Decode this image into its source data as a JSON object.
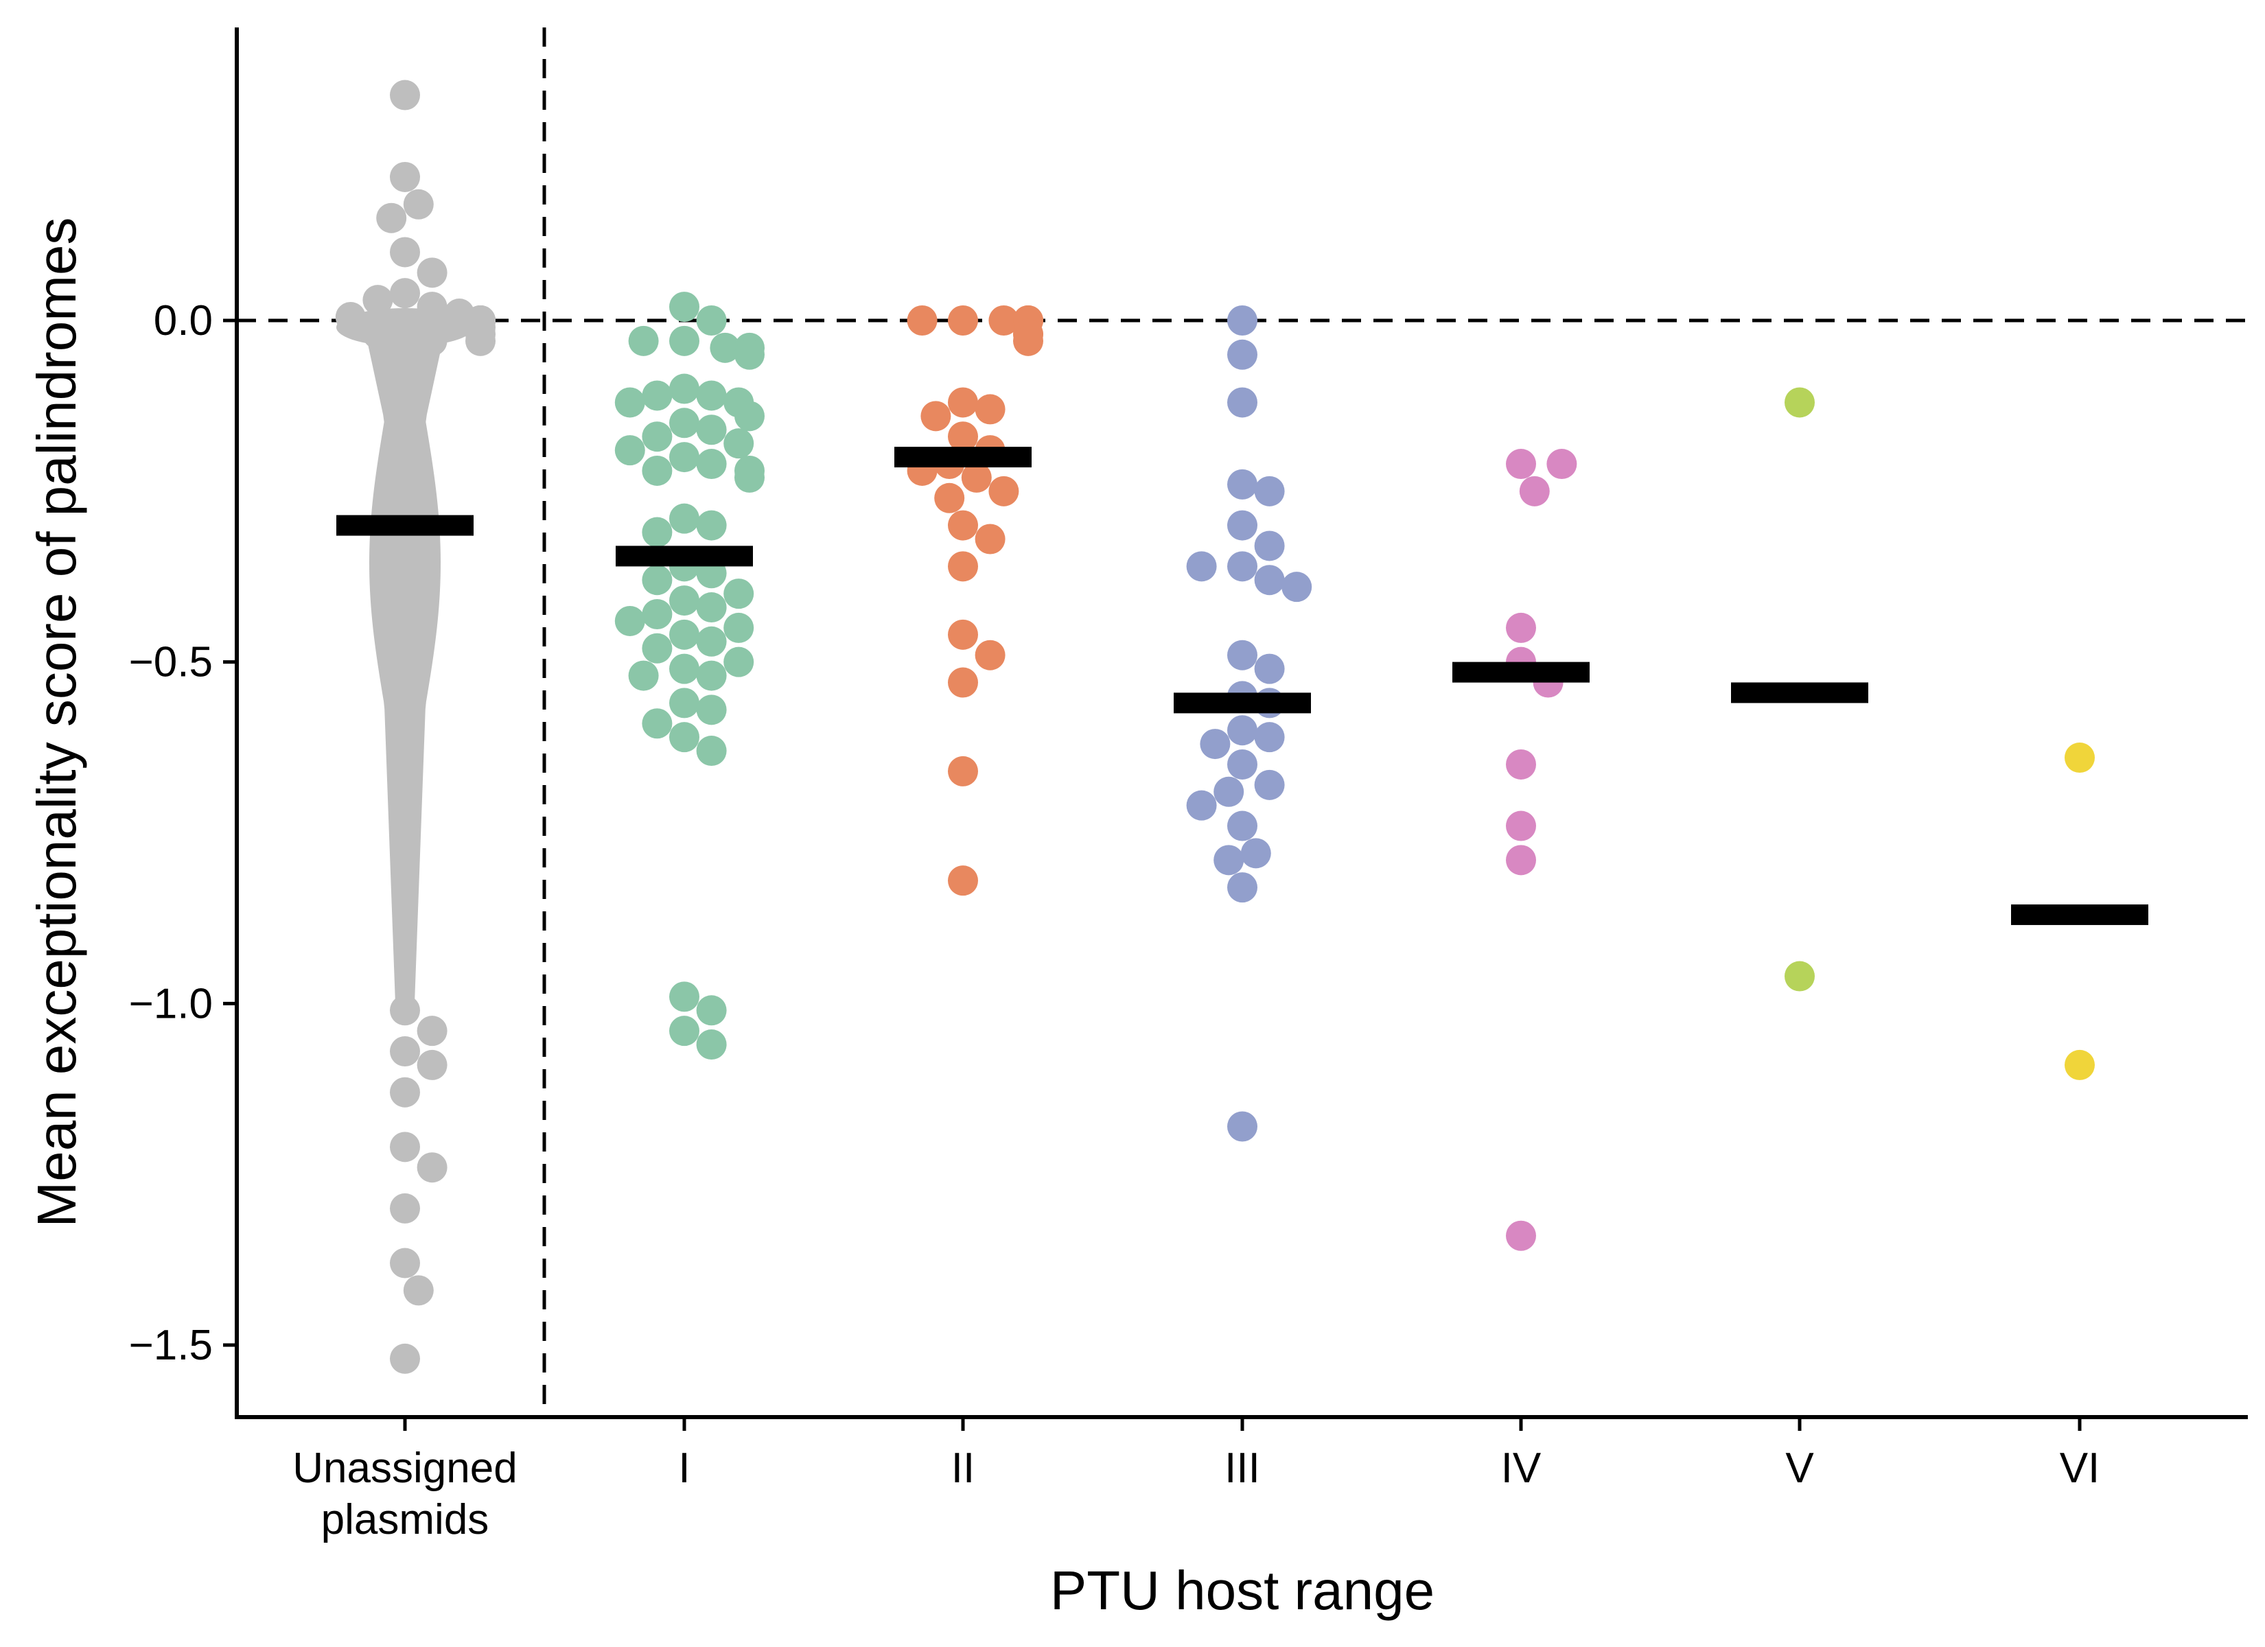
{
  "chart_data": {
    "type": "scatter",
    "subtype": "beeswarm",
    "xlabel": "PTU host range",
    "ylabel": "Mean exceptionality score of palindromes",
    "ylim": [
      -1.6,
      0.38
    ],
    "yticks": [
      0.0,
      -0.5,
      -1.0,
      -1.5
    ],
    "ytick_labels": [
      "0.0",
      "−0.5",
      "−1.0",
      "−1.5"
    ],
    "grid": false,
    "legend": "none",
    "reference_lines": [
      {
        "orientation": "horizontal",
        "value": 0.0,
        "style": "dashed"
      },
      {
        "orientation": "vertical",
        "between": [
          "Unassigned plasmids",
          "I"
        ],
        "style": "dashed"
      }
    ],
    "categories": [
      {
        "key": "unassigned",
        "label_lines": [
          "Unassigned",
          "plasmids"
        ],
        "color": "#bebebe",
        "mean": -0.3,
        "values": [
          0.33,
          0.21,
          0.17,
          0.15,
          0.1,
          0.07,
          0.04,
          0.03,
          0.02,
          0.01,
          0.005,
          0.0,
          0.0,
          0.0,
          0.0,
          0.0,
          0.0,
          0.0,
          0.0,
          0.0,
          0.0,
          0.0,
          0.0,
          -0.01,
          -0.01,
          -0.02,
          -0.02,
          -0.03,
          -0.03,
          -1.01,
          -1.04,
          -1.07,
          -1.09,
          -1.13,
          -1.21,
          -1.24,
          -1.3,
          -1.38,
          -1.42,
          -1.52
        ],
        "dense_band": [
          -0.03,
          -1.0
        ]
      },
      {
        "key": "I",
        "label_lines": [
          "I"
        ],
        "color": "#8bc6a8",
        "mean": -0.345,
        "values": [
          0.02,
          0.0,
          -0.03,
          -0.03,
          -0.04,
          -0.04,
          -0.05,
          -0.1,
          -0.11,
          -0.11,
          -0.12,
          -0.12,
          -0.14,
          -0.15,
          -0.16,
          -0.17,
          -0.18,
          -0.19,
          -0.2,
          -0.21,
          -0.22,
          -0.22,
          -0.23,
          -0.29,
          -0.3,
          -0.31,
          -0.36,
          -0.37,
          -0.38,
          -0.4,
          -0.41,
          -0.42,
          -0.43,
          -0.44,
          -0.45,
          -0.46,
          -0.47,
          -0.48,
          -0.5,
          -0.51,
          -0.52,
          -0.52,
          -0.56,
          -0.57,
          -0.59,
          -0.61,
          -0.63,
          -0.99,
          -1.01,
          -1.04,
          -1.06
        ]
      },
      {
        "key": "II",
        "label_lines": [
          "II"
        ],
        "color": "#e8885f",
        "mean": -0.2,
        "values": [
          0.0,
          0.0,
          0.0,
          0.0,
          0.0,
          0.0,
          -0.02,
          -0.02,
          -0.03,
          -0.12,
          -0.13,
          -0.14,
          -0.17,
          -0.19,
          -0.21,
          -0.22,
          -0.23,
          -0.25,
          -0.26,
          -0.3,
          -0.32,
          -0.36,
          -0.46,
          -0.49,
          -0.53,
          -0.66,
          -0.82
        ]
      },
      {
        "key": "III",
        "label_lines": [
          "III"
        ],
        "color": "#929fcc",
        "mean": -0.56,
        "values": [
          0.0,
          -0.05,
          -0.12,
          -0.24,
          -0.25,
          -0.3,
          -0.33,
          -0.36,
          -0.36,
          -0.38,
          -0.39,
          -0.49,
          -0.51,
          -0.55,
          -0.56,
          -0.6,
          -0.61,
          -0.62,
          -0.65,
          -0.68,
          -0.69,
          -0.71,
          -0.74,
          -0.78,
          -0.79,
          -0.83,
          -1.18
        ]
      },
      {
        "key": "IV",
        "label_lines": [
          "IV"
        ],
        "color": "#d888c2",
        "mean": -0.515,
        "values": [
          -0.21,
          -0.21,
          -0.25,
          -0.45,
          -0.5,
          -0.53,
          -0.65,
          -0.74,
          -0.79,
          -1.34
        ]
      },
      {
        "key": "V",
        "label_lines": [
          "V"
        ],
        "color": "#b6d35a",
        "mean": -0.545,
        "values": [
          -0.12,
          -0.96
        ]
      },
      {
        "key": "VI",
        "label_lines": [
          "VI"
        ],
        "color": "#f0d53a",
        "mean": -0.87,
        "values": [
          -0.64,
          -1.09
        ]
      }
    ]
  }
}
